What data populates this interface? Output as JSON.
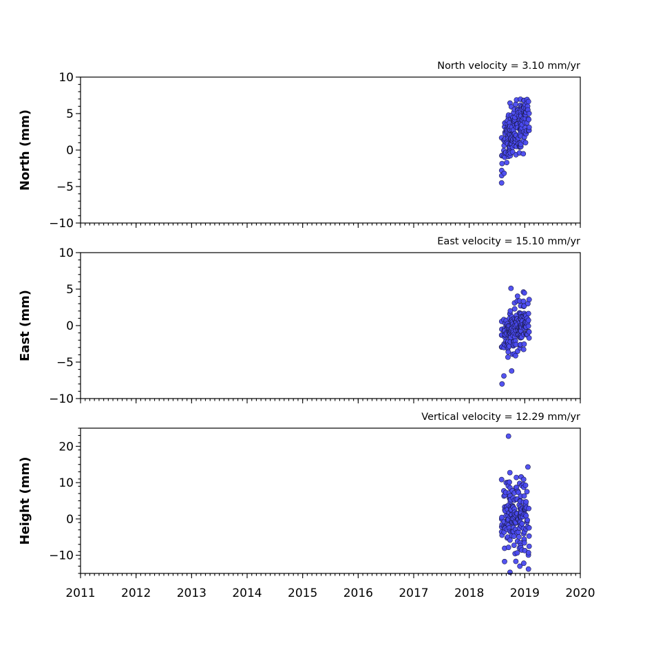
{
  "chart_data": [
    {
      "type": "scatter",
      "title": "North velocity = 3.10 mm/yr",
      "ylabel": "North (mm)",
      "xlim": [
        2011,
        2020
      ],
      "ylim": [
        -10,
        10
      ],
      "yticks": [
        -10,
        -5,
        0,
        5,
        10
      ],
      "ytick_labels": [
        "−10",
        "−5",
        "0",
        "5",
        "10"
      ],
      "x_tick_labels_shown": false,
      "color": "#4a4af0",
      "points": {
        "x": [],
        "y": []
      }
    },
    {
      "type": "scatter",
      "title": "East velocity = 15.10 mm/yr",
      "ylabel": "East (mm)",
      "xlim": [
        2011,
        2020
      ],
      "ylim": [
        -10,
        10
      ],
      "yticks": [
        -10,
        -5,
        0,
        5,
        10
      ],
      "ytick_labels": [
        "−10",
        "−5",
        "0",
        "5",
        "10"
      ],
      "x_tick_labels_shown": false,
      "color": "#4a4af0",
      "points": {
        "x": [],
        "y": []
      }
    },
    {
      "type": "scatter",
      "title": "Vertical velocity = 12.29 mm/yr",
      "ylabel": "Height (mm)",
      "xlim": [
        2011,
        2020
      ],
      "ylim": [
        -15,
        25
      ],
      "yticks": [
        -10,
        0,
        10,
        20
      ],
      "ytick_labels": [
        "−10",
        "0",
        "10",
        "20"
      ],
      "x_tick_labels_shown": true,
      "xticks": [
        2011,
        2012,
        2013,
        2014,
        2015,
        2016,
        2017,
        2018,
        2019,
        2020
      ],
      "xtick_labels": [
        "2011",
        "2012",
        "2013",
        "2014",
        "2015",
        "2016",
        "2017",
        "2018",
        "2019",
        "2020"
      ],
      "color": "#4a4af0",
      "points": {
        "x": [],
        "y": []
      }
    }
  ]
}
